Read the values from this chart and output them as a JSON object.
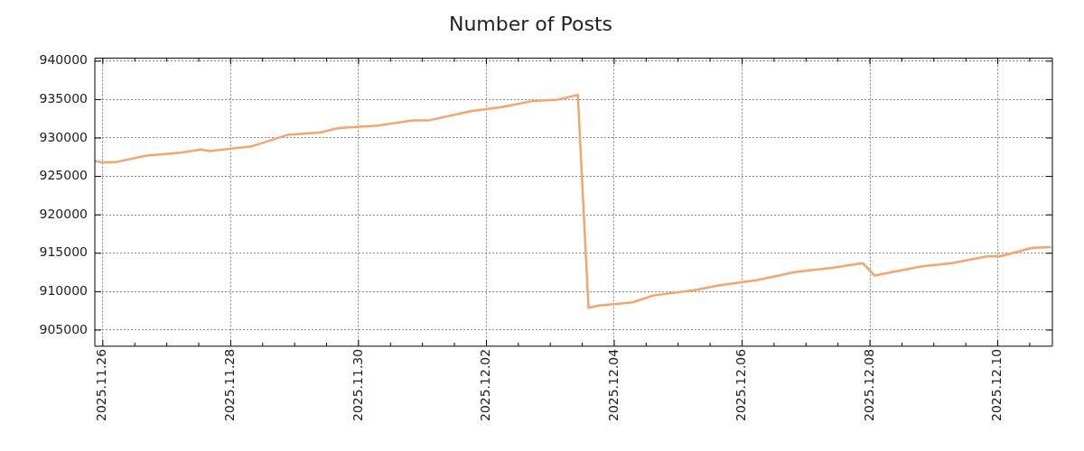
{
  "chart_data": {
    "type": "line",
    "title": "Number of Posts",
    "x": [
      "2025-11-25T21:00",
      "2025-11-26T00:00",
      "2025-11-26T05:20",
      "2025-11-26T16:30",
      "2025-11-27T05:10",
      "2025-11-27T13:00",
      "2025-11-27T16:00",
      "2025-11-28T07:50",
      "2025-11-28T21:10",
      "2025-11-29T09:20",
      "2025-11-29T16:30",
      "2025-11-30T07:10",
      "2025-11-30T20:20",
      "2025-12-01T02:30",
      "2025-12-01T18:10",
      "2025-12-02T05:10",
      "2025-12-02T17:10",
      "2025-12-03T03:00",
      "2025-12-03T10:20",
      "2025-12-03T14:20",
      "2025-12-03T18:10",
      "2025-12-04T06:50",
      "2025-12-04T14:40",
      "2025-12-05T05:50",
      "2025-12-05T16:40",
      "2025-12-06T05:50",
      "2025-12-06T20:30",
      "2025-12-07T09:40",
      "2025-12-07T21:20",
      "2025-12-08T01:40",
      "2025-12-08T19:40",
      "2025-12-09T06:40",
      "2025-12-09T20:00",
      "2025-12-10T00:50",
      "2025-12-10T13:00",
      "2025-12-10T20:00"
    ],
    "series": [
      {
        "color": "#f7a46b",
        "values": [
          927000,
          926800,
          926900,
          927700,
          928100,
          928500,
          928300,
          928900,
          930400,
          930700,
          931300,
          931600,
          932300,
          932300,
          933500,
          934000,
          934800,
          935000,
          935600,
          907900,
          908200,
          908600,
          909500,
          910200,
          910900,
          911500,
          912600,
          913100,
          913700,
          912100,
          913300,
          913700,
          914600,
          914600,
          915700,
          915800
        ]
      }
    ],
    "xlim": [
      "2025-11-25T21:00",
      "2025-12-10T20:30"
    ],
    "xticks": [
      {
        "value": "2025-11-26",
        "label": "2025.11.26"
      },
      {
        "value": "2025-11-26T12:00",
        "label": null
      },
      {
        "value": "2025-11-27",
        "label": null
      },
      {
        "value": "2025-11-27T12:00",
        "label": null
      },
      {
        "value": "2025-11-28",
        "label": "2025.11.28"
      },
      {
        "value": "2025-11-28T12:00",
        "label": null
      },
      {
        "value": "2025-11-29",
        "label": null
      },
      {
        "value": "2025-11-29T12:00",
        "label": null
      },
      {
        "value": "2025-11-30",
        "label": "2025.11.30"
      },
      {
        "value": "2025-11-30T12:00",
        "label": null
      },
      {
        "value": "2025-12-01",
        "label": null
      },
      {
        "value": "2025-12-01T12:00",
        "label": null
      },
      {
        "value": "2025-12-02",
        "label": "2025.12.02"
      },
      {
        "value": "2025-12-02T12:00",
        "label": null
      },
      {
        "value": "2025-12-03",
        "label": null
      },
      {
        "value": "2025-12-03T12:00",
        "label": null
      },
      {
        "value": "2025-12-04",
        "label": "2025.12.04"
      },
      {
        "value": "2025-12-04T12:00",
        "label": null
      },
      {
        "value": "2025-12-05",
        "label": null
      },
      {
        "value": "2025-12-05T12:00",
        "label": null
      },
      {
        "value": "2025-12-06",
        "label": "2025.12.06"
      },
      {
        "value": "2025-12-06T12:00",
        "label": null
      },
      {
        "value": "2025-12-07",
        "label": null
      },
      {
        "value": "2025-12-07T12:00",
        "label": null
      },
      {
        "value": "2025-12-08",
        "label": "2025.12.08"
      },
      {
        "value": "2025-12-08T12:00",
        "label": null
      },
      {
        "value": "2025-12-09",
        "label": null
      },
      {
        "value": "2025-12-09T12:00",
        "label": null
      },
      {
        "value": "2025-12-10",
        "label": "2025.12.10"
      },
      {
        "value": "2025-12-10T12:00",
        "label": null
      }
    ],
    "ylim": [
      902900,
      940400
    ],
    "yticks": [
      905000,
      910000,
      915000,
      920000,
      925000,
      930000,
      935000,
      940000
    ],
    "grid": true,
    "legend": false,
    "marker": "none",
    "line_style": "solid"
  }
}
